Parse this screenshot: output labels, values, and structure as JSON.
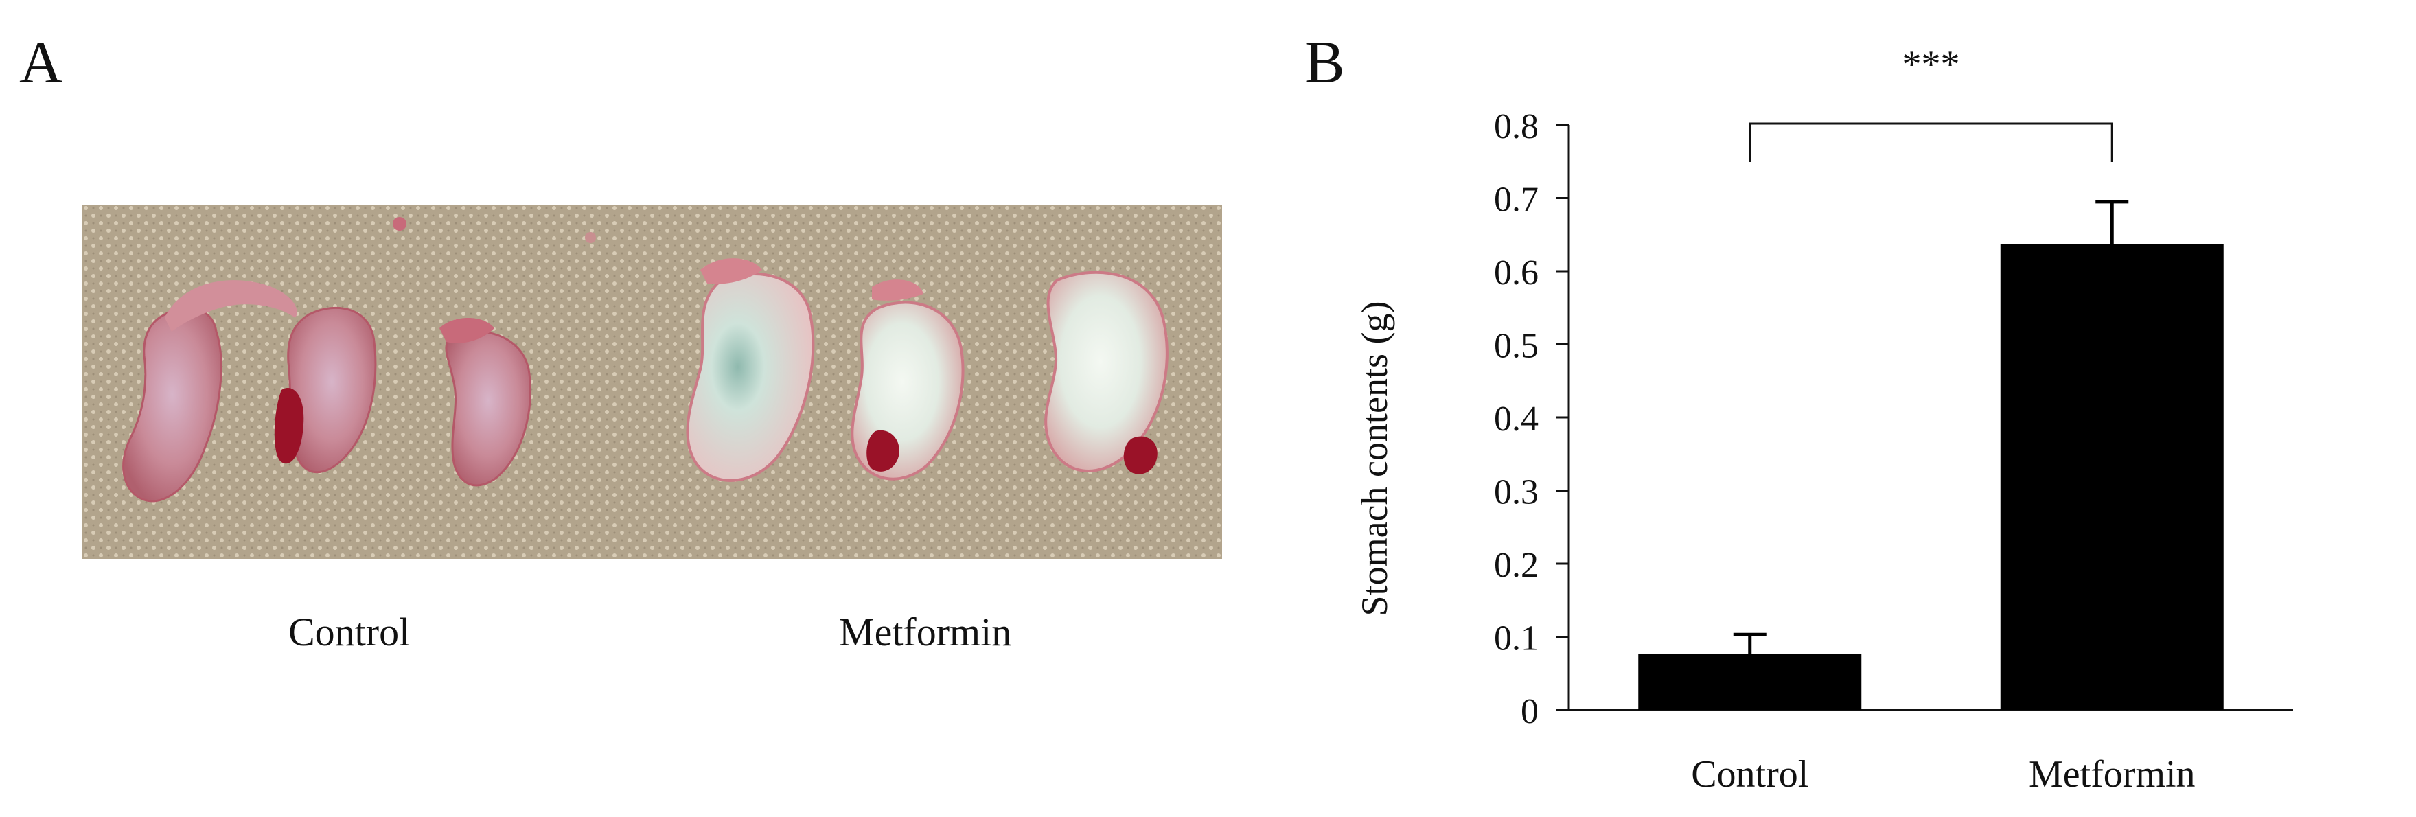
{
  "panel_a": {
    "letter": "A",
    "group_labels": [
      "Control",
      "Metformin"
    ]
  },
  "panel_b": {
    "letter": "B"
  },
  "colors": {
    "bar_fill": "#000000",
    "towel": "#b6a890",
    "control_tissue": "#c98a92",
    "metformin_stomach": "#e4ece4",
    "blood": "#9a1228"
  },
  "chart_data": {
    "type": "bar",
    "title": "",
    "xlabel": "",
    "ylabel": "Stomach contents (g)",
    "categories": [
      "Control",
      "Metformin"
    ],
    "values": [
      0.077,
      0.637
    ],
    "error": [
      0.026,
      0.058
    ],
    "ylim": [
      0,
      0.8
    ],
    "yticks": [
      0,
      0.1,
      0.2,
      0.3,
      0.4,
      0.5,
      0.6,
      0.7,
      0.8
    ],
    "ytick_labels": [
      "0",
      "0.1",
      "0.2",
      "0.3",
      "0.4",
      "0.5",
      "0.6",
      "0.7",
      "0.8"
    ],
    "grid": false,
    "legend": "none",
    "significance": {
      "between": [
        "Control",
        "Metformin"
      ],
      "label": "***"
    }
  }
}
